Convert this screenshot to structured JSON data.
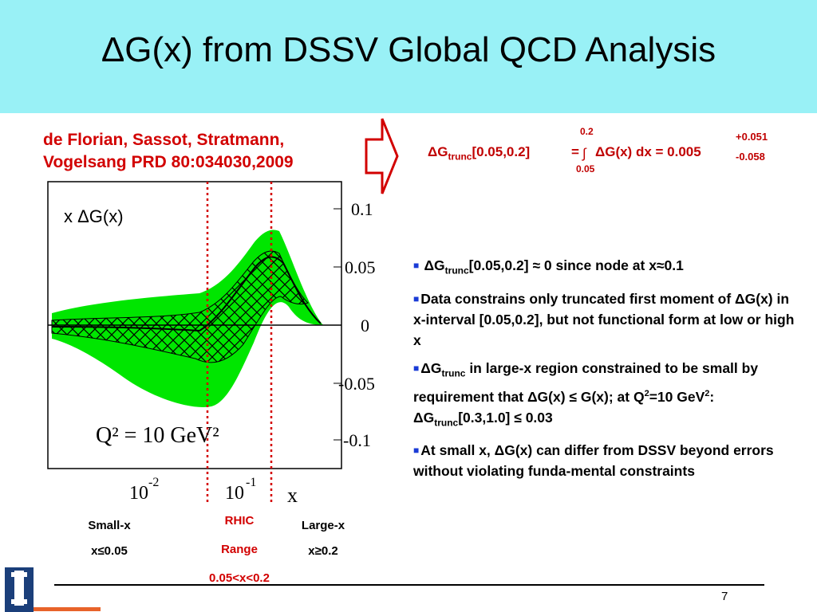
{
  "slide": {
    "title": "ΔG(x) from DSSV Global QCD Analysis",
    "authors_line1": "de Florian, Sassot, Stratmann,",
    "authors_line2": "Vogelsang PRD 80:034030,2009",
    "page_number": "7"
  },
  "formula": {
    "lhs_prefix": "ΔG",
    "lhs_sub": "trunc",
    "lhs_range": "[0.05,0.2]",
    "equals": "=",
    "integral_symbol": "∫",
    "upper_limit": "0.2",
    "lower_limit": "0.05",
    "rhs": "ΔG(x) dx = 0.005",
    "err_plus": "+0.051",
    "err_minus": "-0.058"
  },
  "plot": {
    "ylabel": "x ΔG(x)",
    "xlabel": "x",
    "annotation": "Q² = 10 GeV²",
    "y_ticks": [
      "0.1",
      "0.05",
      "0",
      "-0.05",
      "-0.1"
    ],
    "x_tick_1_base": "10",
    "x_tick_1_exp": "-2",
    "x_tick_2_base": "10",
    "x_tick_2_exp": "-1",
    "colors": {
      "band": "#00e600",
      "frame": "#000000",
      "range_lines": "#d40000"
    }
  },
  "regions": {
    "small_label": "Small-x",
    "small_range": "x≤0.05",
    "rhic_label_1": "RHIC",
    "rhic_label_2": "Range",
    "rhic_range": "0.05<x<0.2",
    "large_label": "Large-x",
    "large_range": "x≥0.2"
  },
  "bullets": {
    "b1_a": "ΔG",
    "b1_sub": "trunc",
    "b1_b": "[0.05,0.2] ≈ 0 since node at x≈0.1",
    "b2": "Data constrains only truncated first moment of ΔG(x) in x-interval [0.05,0.2], but not functional form at low or high x",
    "b3_a": "ΔG",
    "b3_sub": "trunc",
    "b3_b": " in large-x region constrained to be small by requirement that ΔG(x) ≤ G(x); at Q",
    "b3_sup1": "2",
    "b3_c": "=10 GeV",
    "b3_sup2": "2",
    "b3_d": ":  ΔG",
    "b3_sub2": "trunc",
    "b3_e": "[0.3,1.0] ≤ 0.03",
    "b4": "At small x, ΔG(x) can differ from DSSV beyond errors without violating funda-mental constraints"
  },
  "colors": {
    "title_band": "#99f1f6",
    "accent_red": "#d20000",
    "bullet_blue": "#1a3bd6"
  }
}
